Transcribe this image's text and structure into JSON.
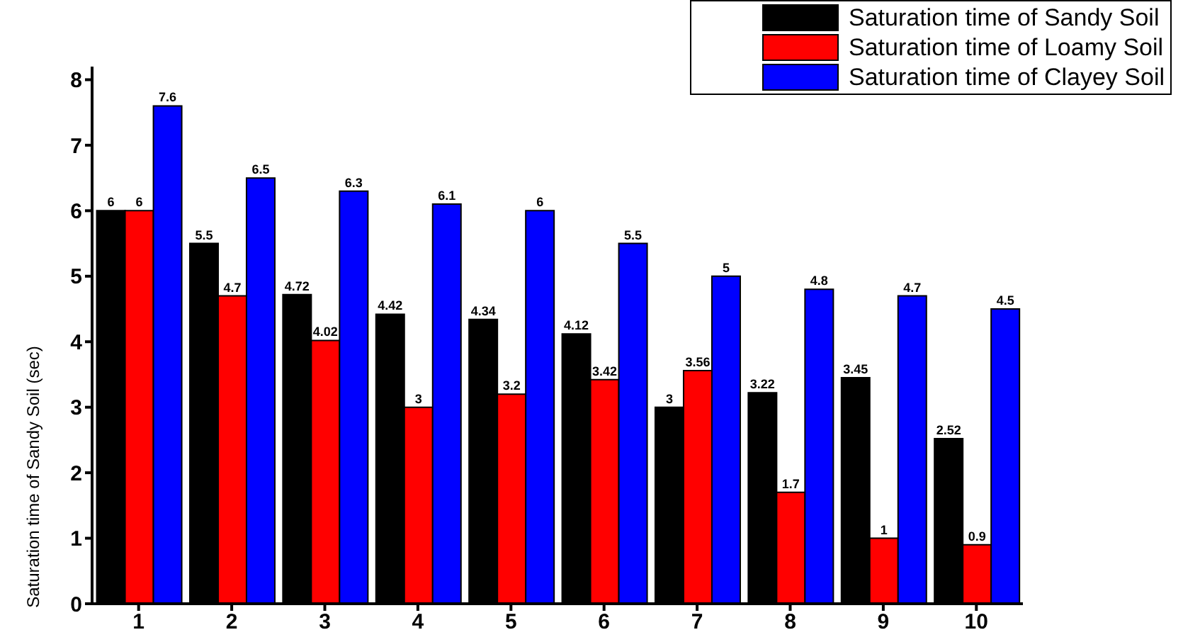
{
  "chart_data": {
    "type": "bar",
    "ylabel": "Saturation time of Sandy Soil (sec)",
    "categories": [
      "1",
      "2",
      "3",
      "4",
      "5",
      "6",
      "7",
      "8",
      "9",
      "10"
    ],
    "series": [
      {
        "name": "Saturation time of Sandy Soil",
        "color": "#000000",
        "values": [
          6,
          5.5,
          4.72,
          4.42,
          4.34,
          4.12,
          3,
          3.22,
          3.45,
          2.52
        ]
      },
      {
        "name": "Saturation time of Loamy Soil",
        "color": "#ff0000",
        "values": [
          6,
          4.7,
          4.02,
          3,
          3.2,
          3.42,
          3.56,
          1.7,
          1,
          0.9
        ]
      },
      {
        "name": "Saturation time of Clayey Soil",
        "color": "#0000ff",
        "values": [
          7.6,
          6.5,
          6.3,
          6.1,
          6,
          5.5,
          5,
          4.8,
          4.7,
          4.5
        ]
      }
    ],
    "ylim": [
      0,
      8.2
    ],
    "yticks": [
      0,
      1,
      2,
      3,
      4,
      5,
      6,
      7,
      8
    ],
    "data_labels": true,
    "legend": "top right",
    "grid": false
  }
}
